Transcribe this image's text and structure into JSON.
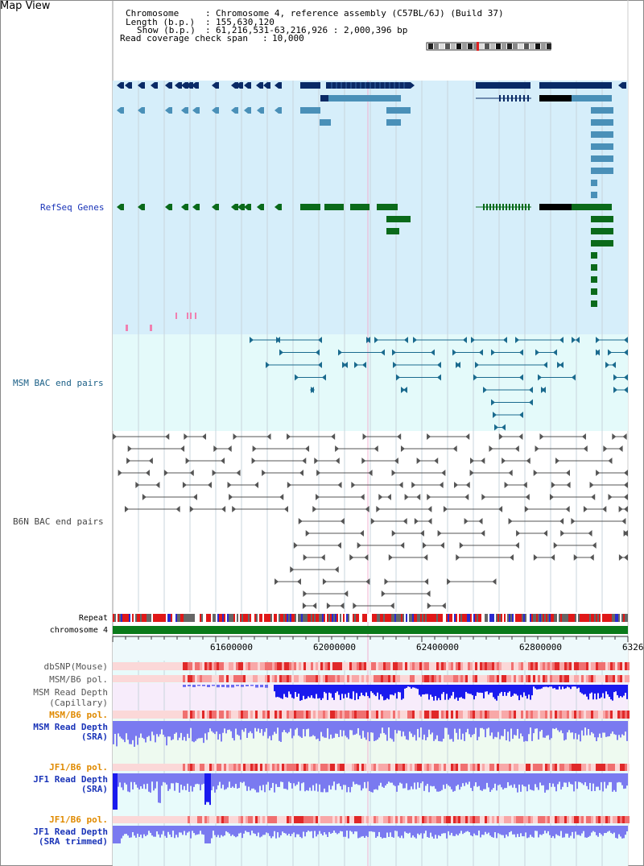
{
  "page": {
    "title": "Map View"
  },
  "header": {
    "chromosome_key": "Chromosome",
    "chromosome_val": "Chromosome 4, reference assembly (C57BL/6J) (Build 37)",
    "length_key": "Length (b.p.)",
    "length_val": "155,630,120",
    "show_key": "Show (b.p.)",
    "show_val": "61,216,531-63,216,926 : 2,000,396 bp",
    "coverage_key": "Read coverage check span",
    "coverage_val": "10,000"
  },
  "tracks": {
    "refseq": "RefSeq Genes",
    "msm_bac": "MSM BAC end pairs",
    "b6n_bac": "B6N BAC end pairs",
    "repeat": "Repeat",
    "chromosome": "chromosome 4",
    "dbsnp": "dbSNP(Mouse)",
    "msm_b6_pol_1": "MSM/B6 pol.",
    "msm_read_depth_cap_1": "MSM Read Depth",
    "msm_read_depth_cap_2": "(Capillary)",
    "msm_b6_pol_2": "MSM/B6 pol.",
    "msm_read_depth_sra_1": "MSM Read Depth",
    "msm_read_depth_sra_2": "(SRA)",
    "jf1_b6_pol_1": "JF1/B6 pol.",
    "jf1_read_depth_sra_1": "JF1 Read Depth",
    "jf1_read_depth_sra_2": "(SRA)",
    "jf1_b6_pol_2": "JF1/B6 pol.",
    "jf1_read_depth_trim_1": "JF1 Read Depth",
    "jf1_read_depth_trim_2": "(SRA trimmed)"
  },
  "axis": {
    "ticks": [
      "61600000",
      "62000000",
      "62400000",
      "62800000",
      "6326"
    ]
  },
  "colors": {
    "refseq_bg": "#d6eefa",
    "bac_bg": "#e4fafa",
    "gene_dark": "#0a2a66",
    "gene_mid": "#4a90b8",
    "gene_green": "#0a6a1a",
    "repeat_red": "#e01818",
    "chrom_green": "#0a7a1a",
    "depth_blue": "#1a1aee",
    "depth_light": "#7a7af0",
    "snp_red": "#e85050"
  }
}
